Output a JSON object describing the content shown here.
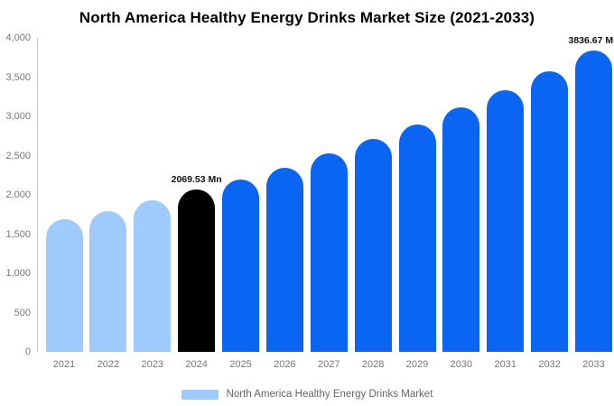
{
  "chart_data": {
    "type": "bar",
    "title": "North America Healthy Energy Drinks Market Size (2021-2033)",
    "categories": [
      "2021",
      "2022",
      "2023",
      "2024",
      "2025",
      "2026",
      "2027",
      "2028",
      "2029",
      "2030",
      "2031",
      "2032",
      "2033"
    ],
    "series": [
      {
        "name": "North America Healthy Energy Drinks Market",
        "values": [
          1690,
          1790,
          1930,
          2069.53,
          2200,
          2350,
          2530,
          2710,
          2900,
          3110,
          3330,
          3570,
          3836.67
        ]
      }
    ],
    "value_unit": "Mn",
    "bar_color_roles": [
      "historical",
      "historical",
      "historical",
      "base_year",
      "forecast",
      "forecast",
      "forecast",
      "forecast",
      "forecast",
      "forecast",
      "forecast",
      "forecast",
      "forecast"
    ],
    "colors": {
      "historical": "#9ECBFB",
      "base_year": "#000000",
      "forecast": "#0A66F2"
    },
    "data_labels": [
      {
        "category": "2024",
        "text": "2069.53 Mn"
      },
      {
        "category": "2033",
        "text": "3836.67 Mn"
      }
    ],
    "ylim": [
      0,
      4000
    ],
    "yticks": [
      {
        "value": 0,
        "label": "0"
      },
      {
        "value": 500,
        "label": "500"
      },
      {
        "value": 1000,
        "label": "1,000"
      },
      {
        "value": 1500,
        "label": "1,500"
      },
      {
        "value": 2000,
        "label": "2,000"
      },
      {
        "value": 2500,
        "label": "2,500"
      },
      {
        "value": 3000,
        "label": "3,000"
      },
      {
        "value": 3500,
        "label": "3,500"
      },
      {
        "value": 4000,
        "label": "4,000"
      }
    ],
    "grid": false,
    "axis_text_color": "#777777",
    "legend": {
      "label": "North America Healthy Energy Drinks Market",
      "swatch_color": "#9ECBFB",
      "position": "bottom-center"
    }
  }
}
